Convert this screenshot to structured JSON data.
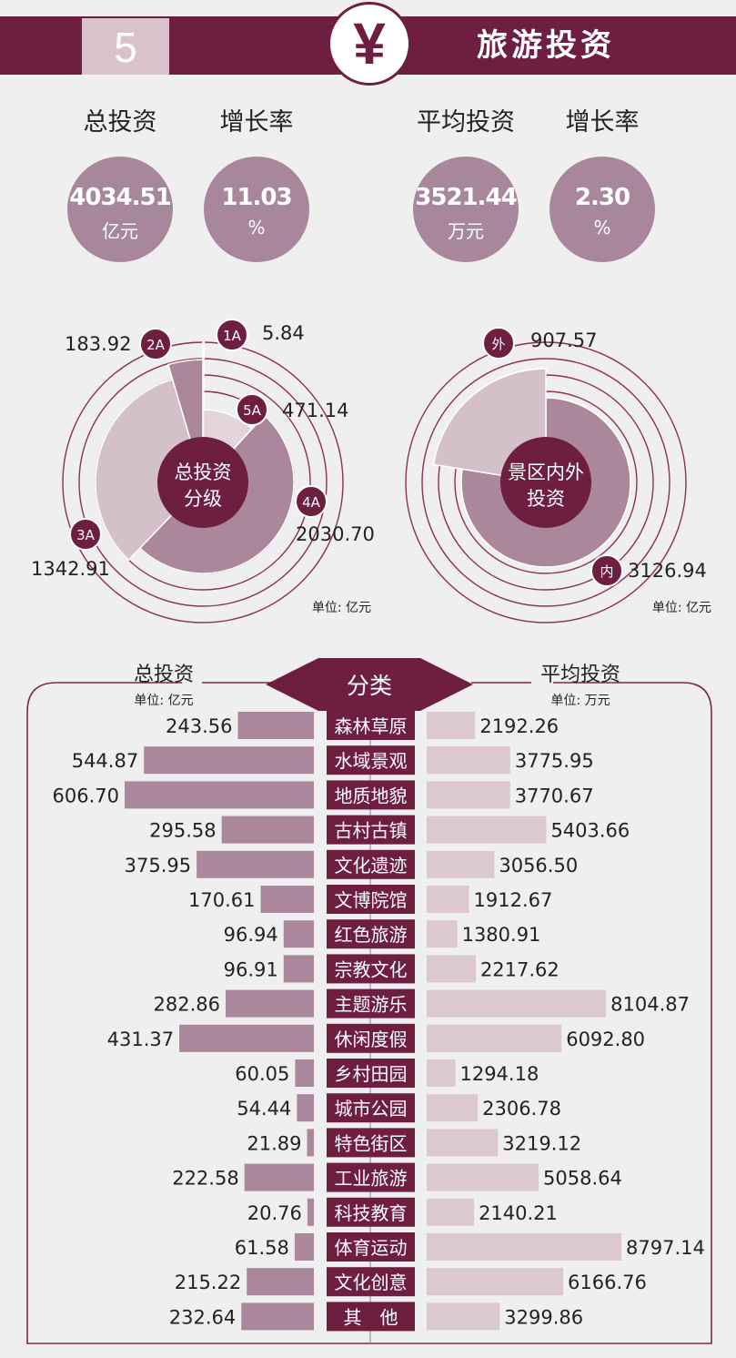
{
  "header": {
    "number": "5",
    "title": "旅游投资"
  },
  "kpis": [
    {
      "label": "总投资",
      "value": "4034.51",
      "unit": "亿元"
    },
    {
      "label": "增长率",
      "value": "11.03",
      "unit": "%"
    },
    {
      "label": "平均投资",
      "value": "3521.44",
      "unit": "万元"
    },
    {
      "label": "增长率",
      "value": "2.30",
      "unit": "%"
    }
  ],
  "chart_data": [
    {
      "type": "pie",
      "title": "总投资分级",
      "unit": "单位: 亿元",
      "slices": [
        {
          "badge": "1A",
          "value": 5.84,
          "value_label": "5.84"
        },
        {
          "badge": "5A",
          "value": 471.14,
          "value_label": "471.14"
        },
        {
          "badge": "4A",
          "value": 2030.7,
          "value_label": "2030.70"
        },
        {
          "badge": "3A",
          "value": 1342.91,
          "value_label": "1342.91"
        },
        {
          "badge": "2A",
          "value": 183.92,
          "value_label": "183.92"
        }
      ],
      "colors": [
        "#d4c0c9",
        "#e2d4da",
        "#ab879c",
        "#d4c0c9",
        "#ab879c"
      ]
    },
    {
      "type": "pie",
      "title": "景区内外投资",
      "unit": "单位: 亿元",
      "slices": [
        {
          "badge": "内",
          "value": 3126.94,
          "value_label": "3126.94"
        },
        {
          "badge": "外",
          "value": 907.57,
          "value_label": "907.57"
        }
      ],
      "colors": [
        "#ab879c",
        "#d4c0c9"
      ]
    },
    {
      "type": "bar",
      "title": "分类",
      "left_title": "总投资",
      "left_unit": "单位: 亿元",
      "right_title": "平均投资",
      "right_unit": "单位: 万元",
      "categories": [
        "森林草原",
        "水域景观",
        "地质地貌",
        "古村古镇",
        "文化遗迹",
        "文博院馆",
        "红色旅游",
        "宗教文化",
        "主题游乐",
        "休闲度假",
        "乡村田园",
        "城市公园",
        "特色街区",
        "工业旅游",
        "科技教育",
        "体育运动",
        "文化创意",
        "其　他"
      ],
      "series": [
        {
          "name": "总投资",
          "values": [
            243.56,
            544.87,
            606.7,
            295.58,
            375.95,
            170.61,
            96.94,
            96.91,
            282.86,
            431.37,
            60.05,
            54.44,
            21.89,
            222.58,
            20.76,
            61.58,
            215.22,
            232.64
          ],
          "labels": [
            "243.56",
            "544.87",
            "606.70",
            "295.58",
            "375.95",
            "170.61",
            "96.94",
            "96.91",
            "282.86",
            "431.37",
            "60.05",
            "54.44",
            "21.89",
            "222.58",
            "20.76",
            "61.58",
            "215.22",
            "232.64"
          ]
        },
        {
          "name": "平均投资",
          "values": [
            2192.26,
            3775.95,
            3770.67,
            5403.66,
            3056.5,
            1912.67,
            1380.91,
            2217.62,
            8104.87,
            6092.8,
            1294.18,
            2306.78,
            3219.12,
            5058.64,
            2140.21,
            8797.14,
            6166.76,
            3299.86
          ],
          "labels": [
            "2192.26",
            "3775.95",
            "3770.67",
            "5403.66",
            "3056.50",
            "1912.67",
            "1380.91",
            "2217.62",
            "8104.87",
            "6092.80",
            "1294.18",
            "2306.78",
            "3219.12",
            "5058.64",
            "2140.21",
            "8797.14",
            "6166.76",
            "3299.86"
          ]
        }
      ],
      "colors": {
        "left_bar": "#ab879c",
        "right_bar": "#dcc9d0",
        "category_box": "#6e1e3e"
      }
    }
  ],
  "colors": {
    "accent": "#6e1e3e",
    "mauve": "#ab879c",
    "light": "#d4c0c9",
    "background": "#f0eff0"
  }
}
